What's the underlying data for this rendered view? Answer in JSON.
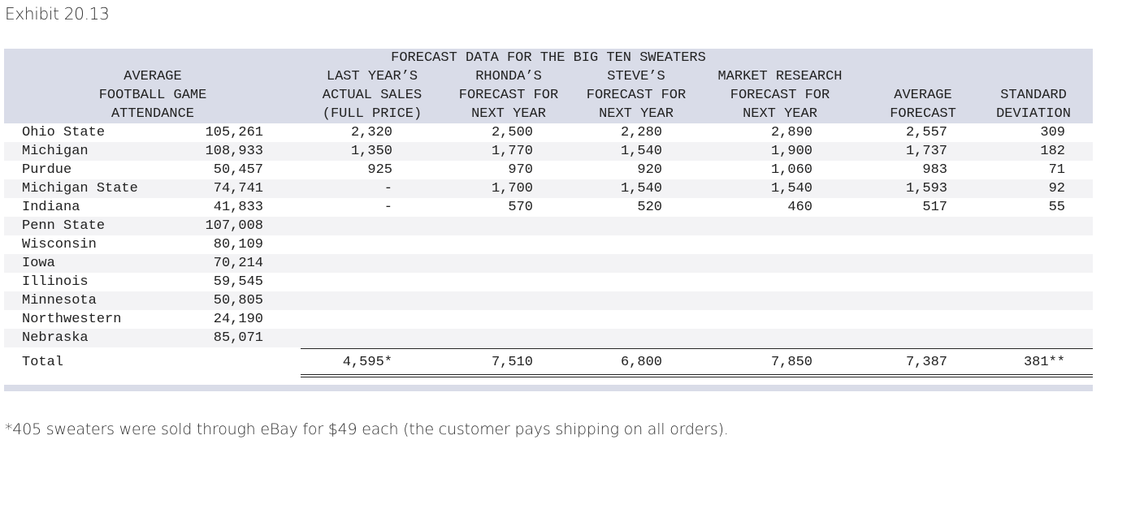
{
  "title": "Exhibit 20.13",
  "table": {
    "caption": "FORECAST DATA FOR THE BIG TEN SWEATERS",
    "columns": [
      {
        "lines": [
          "AVERAGE",
          "FOOTBALL GAME",
          "ATTENDANCE"
        ]
      },
      {
        "lines": [
          "LAST YEAR’S",
          "ACTUAL SALES",
          "(FULL PRICE)"
        ]
      },
      {
        "lines": [
          "RHONDA’S",
          "FORECAST FOR",
          "NEXT YEAR"
        ]
      },
      {
        "lines": [
          "STEVE’S",
          "FORECAST FOR",
          "NEXT YEAR"
        ]
      },
      {
        "lines": [
          "MARKET RESEARCH",
          "FORECAST FOR",
          "NEXT YEAR"
        ]
      },
      {
        "lines": [
          "AVERAGE",
          "FORECAST"
        ]
      },
      {
        "lines": [
          "STANDARD",
          "DEVIATION"
        ]
      }
    ],
    "rows": [
      {
        "name": "Ohio State",
        "values": [
          "105,261",
          "2,320",
          "2,500",
          "2,280",
          "2,890",
          "2,557",
          "309"
        ]
      },
      {
        "name": "Michigan",
        "values": [
          "108,933",
          "1,350",
          "1,770",
          "1,540",
          "1,900",
          "1,737",
          "182"
        ]
      },
      {
        "name": "Purdue",
        "values": [
          "50,457",
          "925",
          "970",
          "920",
          "1,060",
          "983",
          "71"
        ]
      },
      {
        "name": "Michigan State",
        "values": [
          "74,741",
          "-",
          "1,700",
          "1,540",
          "1,540",
          "1,593",
          "92"
        ]
      },
      {
        "name": "Indiana",
        "values": [
          "41,833",
          "-",
          "570",
          "520",
          "460",
          "517",
          "55"
        ]
      },
      {
        "name": "Penn State",
        "values": [
          "107,008",
          "",
          "",
          "",
          "",
          "",
          ""
        ]
      },
      {
        "name": "Wisconsin",
        "values": [
          "80,109",
          "",
          "",
          "",
          "",
          "",
          ""
        ]
      },
      {
        "name": "Iowa",
        "values": [
          "70,214",
          "",
          "",
          "",
          "",
          "",
          ""
        ]
      },
      {
        "name": "Illinois",
        "values": [
          "59,545",
          "",
          "",
          "",
          "",
          "",
          ""
        ]
      },
      {
        "name": "Minnesota",
        "values": [
          "50,805",
          "",
          "",
          "",
          "",
          "",
          ""
        ]
      },
      {
        "name": "Northwestern",
        "values": [
          "24,190",
          "",
          "",
          "",
          "",
          "",
          ""
        ]
      },
      {
        "name": "Nebraska",
        "values": [
          "85,071",
          "",
          "",
          "",
          "",
          "",
          ""
        ]
      }
    ],
    "total": {
      "label": "Total",
      "values": [
        "",
        "4,595*",
        "7,510",
        "6,800",
        "7,850",
        "7,387",
        "381**"
      ]
    }
  },
  "footnote": "*405 sweaters were sold through eBay for $49 each (the customer pays shipping on all orders)."
}
